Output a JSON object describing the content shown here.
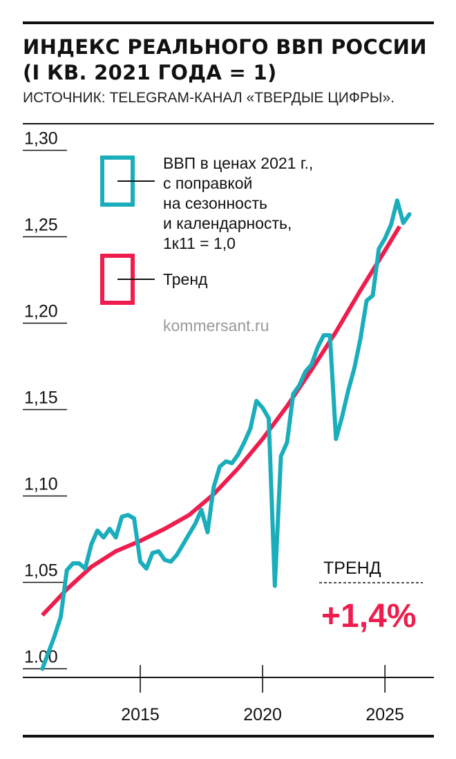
{
  "header": {
    "title_line1": "ИНДЕКС РЕАЛЬНОГО ВВП РОССИИ",
    "title_line2": "(I КВ. 2021 ГОДА = 1)",
    "source": "ИСТОЧНИК: TELEGRAM-КАНАЛ «ТВЕРДЫЕ ЦИФРЫ»."
  },
  "watermark": "kommersant.ru",
  "annotation": {
    "label": "ТРЕНД",
    "value": "+1,4%"
  },
  "colors": {
    "gdp": "#1aadbb",
    "trend": "#ee1d4e",
    "text": "#111111",
    "watermark": "#999999"
  },
  "chart_data": {
    "type": "line",
    "title": "ИНДЕКС РЕАЛЬНОГО ВВП РОССИИ (I КВ. 2021 ГОДА = 1)",
    "xlabel": "",
    "ylabel": "",
    "x_ticks": [
      2015,
      2020,
      2025
    ],
    "x_tick_labels": [
      "2015",
      "2020",
      "2025"
    ],
    "y_ticks": [
      1.0,
      1.05,
      1.1,
      1.15,
      1.2,
      1.25,
      1.3
    ],
    "y_tick_labels": [
      "1.00",
      "1,05",
      "1,10",
      "1,15",
      "1,20",
      "1,25",
      "1,30"
    ],
    "xlim": [
      2010.2,
      2027.0
    ],
    "ylim": [
      0.995,
      1.305
    ],
    "legend_placement": "top-left",
    "grid": false,
    "series": [
      {
        "name": "ВВП в ценах 2021 г., с поправкой на сезонность и календарность, 1к11 = 1,0",
        "color": "#1aadbb",
        "points": [
          [
            2011.0,
            1.0
          ],
          [
            2011.5,
            1.019
          ],
          [
            2011.75,
            1.03
          ],
          [
            2012.0,
            1.057
          ],
          [
            2012.25,
            1.061
          ],
          [
            2012.5,
            1.061
          ],
          [
            2012.75,
            1.058
          ],
          [
            2013.0,
            1.072
          ],
          [
            2013.25,
            1.08
          ],
          [
            2013.5,
            1.076
          ],
          [
            2013.75,
            1.081
          ],
          [
            2014.0,
            1.076
          ],
          [
            2014.25,
            1.088
          ],
          [
            2014.5,
            1.089
          ],
          [
            2014.75,
            1.087
          ],
          [
            2015.0,
            1.062
          ],
          [
            2015.25,
            1.058
          ],
          [
            2015.5,
            1.067
          ],
          [
            2015.75,
            1.068
          ],
          [
            2016.0,
            1.063
          ],
          [
            2016.25,
            1.062
          ],
          [
            2016.5,
            1.066
          ],
          [
            2016.75,
            1.072
          ],
          [
            2017.0,
            1.078
          ],
          [
            2017.25,
            1.084
          ],
          [
            2017.5,
            1.092
          ],
          [
            2017.75,
            1.079
          ],
          [
            2018.0,
            1.105
          ],
          [
            2018.25,
            1.117
          ],
          [
            2018.5,
            1.12
          ],
          [
            2018.75,
            1.119
          ],
          [
            2019.0,
            1.124
          ],
          [
            2019.25,
            1.131
          ],
          [
            2019.5,
            1.139
          ],
          [
            2019.75,
            1.155
          ],
          [
            2020.0,
            1.151
          ],
          [
            2020.25,
            1.145
          ],
          [
            2020.5,
            1.048
          ],
          [
            2020.75,
            1.123
          ],
          [
            2021.0,
            1.131
          ],
          [
            2021.25,
            1.159
          ],
          [
            2021.5,
            1.164
          ],
          [
            2021.75,
            1.172
          ],
          [
            2022.0,
            1.176
          ],
          [
            2022.25,
            1.186
          ],
          [
            2022.5,
            1.193
          ],
          [
            2022.75,
            1.193
          ],
          [
            2023.0,
            1.133
          ],
          [
            2023.25,
            1.146
          ],
          [
            2023.5,
            1.161
          ],
          [
            2023.75,
            1.174
          ],
          [
            2024.0,
            1.191
          ],
          [
            2024.25,
            1.213
          ],
          [
            2024.5,
            1.216
          ],
          [
            2024.75,
            1.243
          ],
          [
            2025.0,
            1.249
          ],
          [
            2025.25,
            1.257
          ],
          [
            2025.5,
            1.271
          ],
          [
            2025.75,
            1.258
          ],
          [
            2026.0,
            1.263
          ]
        ]
      },
      {
        "name": "Тренд",
        "color": "#ee1d4e",
        "points": [
          [
            2011.0,
            1.031
          ],
          [
            2012.0,
            1.046
          ],
          [
            2013.0,
            1.059
          ],
          [
            2014.0,
            1.068
          ],
          [
            2015.0,
            1.074
          ],
          [
            2016.0,
            1.081
          ],
          [
            2017.0,
            1.089
          ],
          [
            2018.0,
            1.101
          ],
          [
            2019.0,
            1.116
          ],
          [
            2020.0,
            1.133
          ],
          [
            2021.0,
            1.152
          ],
          [
            2022.0,
            1.173
          ],
          [
            2023.0,
            1.195
          ],
          [
            2024.0,
            1.219
          ],
          [
            2025.0,
            1.242
          ],
          [
            2025.6,
            1.256
          ]
        ]
      }
    ]
  }
}
